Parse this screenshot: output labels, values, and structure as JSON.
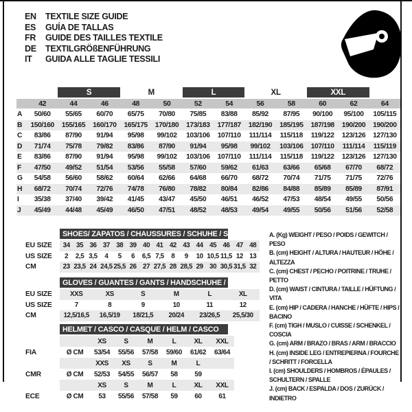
{
  "header": {
    "languages": [
      {
        "code": "EN",
        "title": "TEXTILE SIZE GUIDE"
      },
      {
        "code": "ES",
        "title": "GUÍA DE TALLAS"
      },
      {
        "code": "FR",
        "title": "GUIDE DES TAILLES TEXTILE"
      },
      {
        "code": "DE",
        "title": "TEXTILGRÖßENFÜHRUNG"
      },
      {
        "code": "IT",
        "title": "GUIDA ALLE TAGLIE TESSILI"
      }
    ],
    "icon": "racing-helmet"
  },
  "size_table": {
    "groups": [
      {
        "label": "S",
        "dark": true
      },
      {
        "label": "M",
        "dark": false
      },
      {
        "label": "L",
        "dark": true
      },
      {
        "label": "XL",
        "dark": false
      },
      {
        "label": "XXL",
        "dark": true
      }
    ],
    "sizes": [
      "42",
      "44",
      "46",
      "48",
      "50",
      "52",
      "54",
      "56",
      "58",
      "60",
      "62",
      "64"
    ],
    "rows": [
      {
        "letter": "A",
        "values": [
          "50/60",
          "55/65",
          "60/70",
          "65/75",
          "70/80",
          "75/85",
          "83/88",
          "85/92",
          "87/95",
          "90/100",
          "95/100",
          "105/115"
        ]
      },
      {
        "letter": "B",
        "values": [
          "150/160",
          "155/165",
          "160/170",
          "165/175",
          "170/180",
          "173/183",
          "177/187",
          "182/190",
          "185/195",
          "187/198",
          "190/200",
          "190/200"
        ]
      },
      {
        "letter": "C",
        "values": [
          "83/86",
          "87/90",
          "91/94",
          "95/98",
          "99/102",
          "103/106",
          "107/110",
          "111/114",
          "115/118",
          "119/122",
          "123/126",
          "127/130"
        ]
      },
      {
        "letter": "D",
        "values": [
          "71/74",
          "75/78",
          "79/82",
          "83/86",
          "87/90",
          "91/94",
          "95/98",
          "99/102",
          "103/106",
          "107/110",
          "111/114",
          "115/119"
        ]
      },
      {
        "letter": "E",
        "values": [
          "83/86",
          "87/90",
          "91/94",
          "95/98",
          "99/102",
          "103/106",
          "107/110",
          "111/114",
          "115/118",
          "119/122",
          "123/126",
          "127/130"
        ]
      },
      {
        "letter": "F",
        "values": [
          "47/50",
          "49/52",
          "51/54",
          "53/56",
          "55/58",
          "57/60",
          "59/62",
          "61/63",
          "63/66",
          "65/68",
          "67/70",
          "68/72"
        ]
      },
      {
        "letter": "G",
        "values": [
          "54/58",
          "56/60",
          "58/62",
          "60/64",
          "62/66",
          "64/68",
          "66/70",
          "68/72",
          "70/74",
          "71/75",
          "71/75",
          "72/76"
        ]
      },
      {
        "letter": "H",
        "values": [
          "68/72",
          "70/74",
          "72/76",
          "74/78",
          "76/80",
          "78/82",
          "80/84",
          "82/86",
          "84/88",
          "85/89",
          "85/89",
          "87/91"
        ]
      },
      {
        "letter": "I",
        "values": [
          "35/38",
          "37/40",
          "39/42",
          "41/45",
          "43/47",
          "45/50",
          "46/51",
          "46/52",
          "47/53",
          "48/54",
          "49/55",
          "50/56"
        ]
      },
      {
        "letter": "J",
        "values": [
          "45/49",
          "44/48",
          "45/49",
          "46/50",
          "47/51",
          "48/52",
          "48/53",
          "49/54",
          "49/55",
          "50/56",
          "51/56",
          "52/58"
        ]
      }
    ]
  },
  "shoes": {
    "title": "SHOES/ ZAPATOS / CHAUSSURES / SCHUHE / SCARPE",
    "rows": [
      {
        "label": "EU SIZE",
        "values": [
          "34",
          "35",
          "36",
          "37",
          "38",
          "39",
          "40",
          "41",
          "42",
          "43",
          "44",
          "45",
          "46",
          "47",
          "48"
        ]
      },
      {
        "label": "US SIZE",
        "values": [
          "2",
          "2,5",
          "3,5",
          "4",
          "5",
          "6",
          "6,5",
          "7,5",
          "8",
          "9",
          "10",
          "10,5",
          "11,5",
          "12",
          "13"
        ]
      },
      {
        "label": "CM",
        "values": [
          "23",
          "23,5",
          "24",
          "24,5",
          "25,5",
          "26",
          "27",
          "27,5",
          "28",
          "28,5",
          "29",
          "30",
          "30,5",
          "31,5",
          "32"
        ]
      }
    ]
  },
  "gloves": {
    "title": "GLOVES / GUANTES / GANTS / HANDSCHUHE / GUANTI",
    "rows": [
      {
        "label": "EU SIZE",
        "values": [
          "XXS",
          "XS",
          "S",
          "M",
          "L",
          "XL"
        ]
      },
      {
        "label": "US SIZE",
        "values": [
          "7",
          "8",
          "9",
          "10",
          "11",
          "12"
        ]
      },
      {
        "label": "CM",
        "values": [
          "12,5/16,5",
          "16,5/19",
          "18/21,5",
          "20/24",
          "23/26,5",
          "25,5/30"
        ]
      }
    ]
  },
  "helmet": {
    "title": "HELMET / CASCO / CASQUE / HELM / CASCO",
    "rows": [
      {
        "type": "sizes",
        "label": "",
        "unit": "",
        "values": [
          "XS",
          "S",
          "M",
          "L",
          "XL",
          "XXL"
        ]
      },
      {
        "type": "data",
        "label": "FIA",
        "unit": "Ø CM",
        "values": [
          "53/54",
          "55/56",
          "57/58",
          "59/60",
          "61/62",
          "63/64"
        ]
      },
      {
        "type": "sizes",
        "label": "",
        "unit": "",
        "values": [
          "XXS",
          "XS",
          "S",
          "M",
          "L",
          ""
        ]
      },
      {
        "type": "data",
        "label": "CMR",
        "unit": "Ø CM",
        "values": [
          "52/53",
          "54/55",
          "56/57",
          "58",
          "59",
          ""
        ]
      },
      {
        "type": "sizes",
        "label": "",
        "unit": "",
        "values": [
          "XS",
          "S",
          "M",
          "L",
          "XL",
          "XXL"
        ]
      },
      {
        "type": "data",
        "label": "ECE",
        "unit": "Ø CM",
        "values": [
          "53",
          "55/56",
          "57/58",
          "59",
          "60",
          "61"
        ]
      }
    ]
  },
  "legend": {
    "items": [
      "A. (Kg) WEIGHT / PESO / POIDS / GEWITCH / PESO",
      "B. (cm) HEIGHT / ALTURA / HAUTEUR / HÖHE / ALTEZZA",
      "C. (cm) CHEST / PECHO / POITRINE / TRUHE / PETTO",
      "D. (cm) WAIST / CINTURA / TAILLE / HÜFTUNG / VITA",
      "E. (cm) HIP / CADERA / HANCHE / HÜFTE / HIPS / BACINO",
      "F. (cm) TIGH / MUSLO / CUISSE / SCHENKEL / COSCIA",
      "G. (cm) ARM / BRAZO / BRAS / ARM / BRACCIO",
      "H. (cm) INSIDE LEG / ENTREPIERNA / FOURCHE / SCHRITT / FORCELLA",
      "I. (cm) SHOULDERS / HOMBROS / ÉPAULES / SCHULTERN / SPALLE",
      "J. (cm) BACK / ESPALDA / DOS / ZURÜCK / INDIETRO"
    ]
  },
  "colors": {
    "dark_band": "#3c3c3c",
    "size_strip": "#c6c6c6",
    "row_shade": "#e9e9e9",
    "text": "#1b1b1b"
  }
}
